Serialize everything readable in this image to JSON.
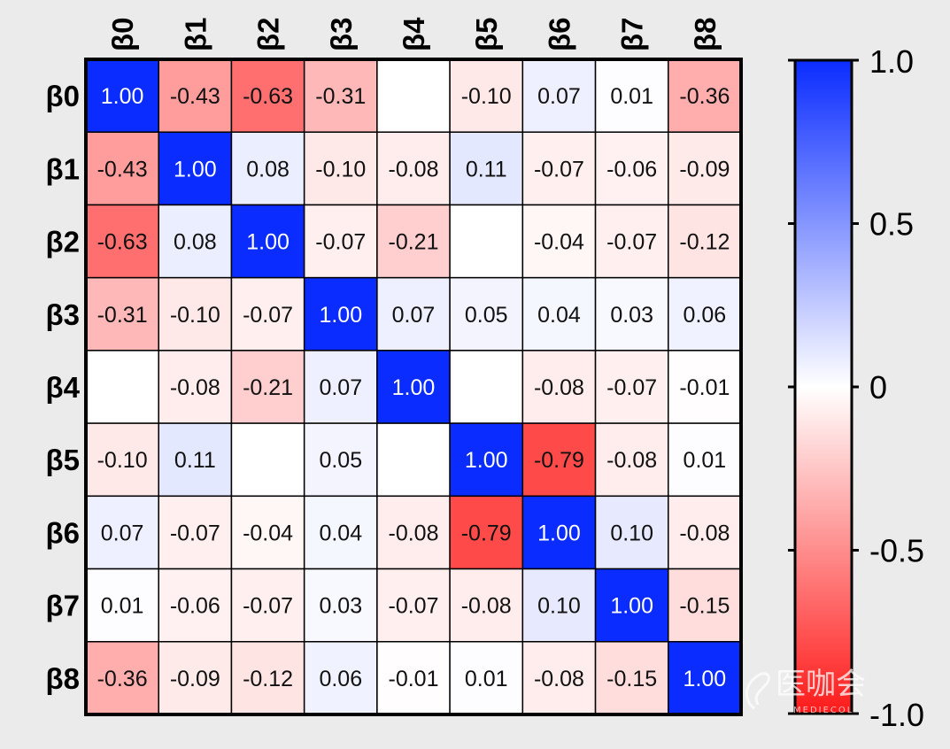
{
  "chart_data": {
    "type": "heatmap",
    "row_labels": [
      "β0",
      "β1",
      "β2",
      "β3",
      "β4",
      "β5",
      "β6",
      "β7",
      "β8"
    ],
    "col_labels": [
      "β0",
      "β1",
      "β2",
      "β3",
      "β4",
      "β5",
      "β6",
      "β7",
      "β8"
    ],
    "values": [
      [
        1.0,
        -0.43,
        -0.63,
        -0.31,
        null,
        -0.1,
        0.07,
        0.01,
        -0.36
      ],
      [
        -0.43,
        1.0,
        0.08,
        -0.1,
        -0.08,
        0.11,
        -0.07,
        -0.06,
        -0.09
      ],
      [
        -0.63,
        0.08,
        1.0,
        -0.07,
        -0.21,
        null,
        -0.04,
        -0.07,
        -0.12
      ],
      [
        -0.31,
        -0.1,
        -0.07,
        1.0,
        0.07,
        0.05,
        0.04,
        0.03,
        0.06
      ],
      [
        null,
        -0.08,
        -0.21,
        0.07,
        1.0,
        null,
        -0.08,
        -0.07,
        -0.01
      ],
      [
        -0.1,
        0.11,
        null,
        0.05,
        null,
        1.0,
        -0.79,
        -0.08,
        0.01
      ],
      [
        0.07,
        -0.07,
        -0.04,
        0.04,
        -0.08,
        -0.79,
        1.0,
        0.1,
        -0.08
      ],
      [
        0.01,
        -0.06,
        -0.07,
        0.03,
        -0.07,
        -0.08,
        0.1,
        1.0,
        -0.15
      ],
      [
        -0.36,
        -0.09,
        -0.12,
        0.06,
        -0.01,
        0.01,
        -0.08,
        -0.15,
        1.0
      ]
    ],
    "display": [
      [
        "1.00",
        "-0.43",
        "-0.63",
        "-0.31",
        "",
        "-0.10",
        "0.07",
        "0.01",
        "-0.36"
      ],
      [
        "-0.43",
        "1.00",
        "0.08",
        "-0.10",
        "-0.08",
        "0.11",
        "-0.07",
        "-0.06",
        "-0.09"
      ],
      [
        "-0.63",
        "0.08",
        "1.00",
        "-0.07",
        "-0.21",
        "",
        "-0.04",
        "-0.07",
        "-0.12"
      ],
      [
        "-0.31",
        "-0.10",
        "-0.07",
        "1.00",
        "0.07",
        "0.05",
        "0.04",
        "0.03",
        "0.06"
      ],
      [
        "",
        "-0.08",
        "-0.21",
        "0.07",
        "1.00",
        "",
        "-0.08",
        "-0.07",
        "-0.01"
      ],
      [
        "-0.10",
        "0.11",
        "",
        "0.05",
        "",
        "1.00",
        "-0.79",
        "-0.08",
        "0.01"
      ],
      [
        "0.07",
        "-0.07",
        "-0.04",
        "0.04",
        "-0.08",
        "-0.79",
        "1.00",
        "0.10",
        "-0.08"
      ],
      [
        "0.01",
        "-0.06",
        "-0.07",
        "0.03",
        "-0.07",
        "-0.08",
        "0.10",
        "1.00",
        "-0.15"
      ],
      [
        "-0.36",
        "-0.09",
        "-0.12",
        "0.06",
        "-0.01",
        "0.01",
        "-0.08",
        "-0.15",
        "1.00"
      ]
    ],
    "colorscale": {
      "min": -1.0,
      "max": 1.0,
      "min_color": "#ff1a1a",
      "mid_color": "#ffffff",
      "max_color": "#0a2cff"
    },
    "colorbar": {
      "ticks": [
        1.0,
        0.5,
        0,
        -0.5,
        -1.0
      ],
      "tick_labels": [
        "1.0",
        "0.5",
        "0",
        "-0.5",
        "-1.0"
      ],
      "position": "right"
    },
    "grid": true,
    "legend": "none"
  },
  "watermark": {
    "text": "医咖会",
    "subtext": "MEDIECOL",
    "position": "bottom-right"
  }
}
